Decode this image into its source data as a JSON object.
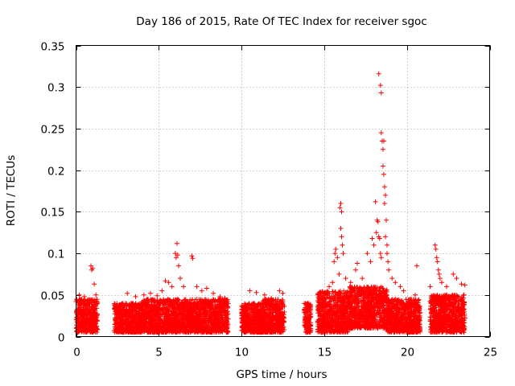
{
  "chart_data": {
    "type": "scatter",
    "title": "Day 186 of 2015, Rate Of TEC Index for receiver sgoc",
    "xlabel": "GPS time / hours",
    "ylabel": "ROTI / TECUs",
    "xlim": [
      0,
      25
    ],
    "ylim": [
      0,
      0.35
    ],
    "xticks": [
      0,
      5,
      10,
      15,
      20,
      25
    ],
    "yticks": [
      0,
      0.05,
      0.1,
      0.15,
      0.2,
      0.25,
      0.3,
      0.35
    ],
    "xtick_labels": [
      "0",
      "5",
      "10",
      "15",
      "20",
      "25"
    ],
    "ytick_labels": [
      "0",
      "0.05",
      "0.1",
      "0.15",
      "0.2",
      "0.25",
      "0.3",
      "0.35"
    ],
    "grid": true,
    "marker": "+",
    "color": "#ff0000",
    "bands": [
      {
        "x": [
          0.0,
          1.3
        ],
        "y": [
          0.005,
          0.045
        ]
      },
      {
        "x": [
          2.3,
          4.0
        ],
        "y": [
          0.005,
          0.04
        ]
      },
      {
        "x": [
          4.0,
          6.0
        ],
        "y": [
          0.005,
          0.045
        ]
      },
      {
        "x": [
          6.0,
          9.2
        ],
        "y": [
          0.005,
          0.045
        ]
      },
      {
        "x": [
          10.0,
          11.3
        ],
        "y": [
          0.005,
          0.04
        ]
      },
      {
        "x": [
          11.3,
          12.6
        ],
        "y": [
          0.005,
          0.045
        ]
      },
      {
        "x": [
          13.8,
          14.2
        ],
        "y": [
          0.005,
          0.04
        ]
      },
      {
        "x": [
          14.6,
          16.5
        ],
        "y": [
          0.005,
          0.055
        ]
      },
      {
        "x": [
          16.5,
          18.8
        ],
        "y": [
          0.01,
          0.06
        ]
      },
      {
        "x": [
          18.8,
          20.8
        ],
        "y": [
          0.005,
          0.045
        ]
      },
      {
        "x": [
          21.4,
          23.5
        ],
        "y": [
          0.005,
          0.05
        ]
      }
    ],
    "series": [
      {
        "name": "ROTI",
        "points": [
          [
            0.2,
            0.05
          ],
          [
            0.5,
            0.048
          ],
          [
            0.9,
            0.085
          ],
          [
            0.95,
            0.08
          ],
          [
            1.0,
            0.082
          ],
          [
            1.1,
            0.063
          ],
          [
            1.2,
            0.05
          ],
          [
            3.1,
            0.052
          ],
          [
            3.6,
            0.048
          ],
          [
            4.1,
            0.05
          ],
          [
            4.5,
            0.052
          ],
          [
            4.9,
            0.049
          ],
          [
            5.2,
            0.055
          ],
          [
            5.4,
            0.067
          ],
          [
            5.6,
            0.065
          ],
          [
            5.8,
            0.06
          ],
          [
            6.0,
            0.1
          ],
          [
            6.05,
            0.095
          ],
          [
            6.1,
            0.112
          ],
          [
            6.15,
            0.098
          ],
          [
            6.2,
            0.085
          ],
          [
            6.3,
            0.07
          ],
          [
            6.5,
            0.06
          ],
          [
            7.0,
            0.097
          ],
          [
            7.05,
            0.094
          ],
          [
            7.3,
            0.06
          ],
          [
            7.6,
            0.055
          ],
          [
            7.9,
            0.058
          ],
          [
            8.3,
            0.052
          ],
          [
            8.7,
            0.048
          ],
          [
            9.0,
            0.046
          ],
          [
            10.5,
            0.055
          ],
          [
            10.9,
            0.053
          ],
          [
            11.4,
            0.05
          ],
          [
            11.8,
            0.046
          ],
          [
            12.3,
            0.055
          ],
          [
            12.5,
            0.052
          ],
          [
            14.0,
            0.04
          ],
          [
            15.0,
            0.045
          ],
          [
            15.2,
            0.05
          ],
          [
            15.3,
            0.06
          ],
          [
            15.5,
            0.065
          ],
          [
            15.6,
            0.09
          ],
          [
            15.65,
            0.1
          ],
          [
            15.7,
            0.105
          ],
          [
            15.8,
            0.095
          ],
          [
            15.9,
            0.075
          ],
          [
            15.95,
            0.155
          ],
          [
            16.0,
            0.16
          ],
          [
            16.05,
            0.15
          ],
          [
            16.0,
            0.13
          ],
          [
            16.05,
            0.12
          ],
          [
            16.1,
            0.11
          ],
          [
            16.15,
            0.1
          ],
          [
            16.3,
            0.07
          ],
          [
            16.6,
            0.065
          ],
          [
            16.9,
            0.08
          ],
          [
            17.0,
            0.088
          ],
          [
            17.3,
            0.07
          ],
          [
            17.6,
            0.1
          ],
          [
            17.8,
            0.09
          ],
          [
            17.9,
            0.118
          ],
          [
            18.0,
            0.11
          ],
          [
            18.1,
            0.162
          ],
          [
            18.15,
            0.125
          ],
          [
            18.2,
            0.14
          ],
          [
            18.25,
            0.138
          ],
          [
            18.3,
            0.12
          ],
          [
            18.35,
            0.118
          ],
          [
            18.4,
            0.1
          ],
          [
            18.45,
            0.095
          ],
          [
            18.3,
            0.316
          ],
          [
            18.4,
            0.302
          ],
          [
            18.45,
            0.293
          ],
          [
            18.45,
            0.245
          ],
          [
            18.5,
            0.235
          ],
          [
            18.55,
            0.225
          ],
          [
            18.6,
            0.235
          ],
          [
            18.55,
            0.205
          ],
          [
            18.6,
            0.195
          ],
          [
            18.65,
            0.18
          ],
          [
            18.7,
            0.17
          ],
          [
            18.65,
            0.16
          ],
          [
            18.75,
            0.14
          ],
          [
            18.7,
            0.12
          ],
          [
            18.8,
            0.11
          ],
          [
            18.8,
            0.1
          ],
          [
            18.85,
            0.09
          ],
          [
            18.9,
            0.08
          ],
          [
            19.1,
            0.07
          ],
          [
            19.3,
            0.065
          ],
          [
            19.6,
            0.06
          ],
          [
            19.8,
            0.055
          ],
          [
            20.2,
            0.045
          ],
          [
            20.5,
            0.05
          ],
          [
            20.6,
            0.085
          ],
          [
            21.4,
            0.06
          ],
          [
            21.7,
            0.11
          ],
          [
            21.75,
            0.105
          ],
          [
            21.8,
            0.095
          ],
          [
            21.85,
            0.09
          ],
          [
            21.9,
            0.08
          ],
          [
            21.95,
            0.075
          ],
          [
            22.0,
            0.07
          ],
          [
            22.1,
            0.065
          ],
          [
            22.4,
            0.06
          ],
          [
            22.8,
            0.075
          ],
          [
            23.0,
            0.07
          ],
          [
            23.3,
            0.063
          ],
          [
            23.5,
            0.062
          ]
        ]
      }
    ]
  }
}
